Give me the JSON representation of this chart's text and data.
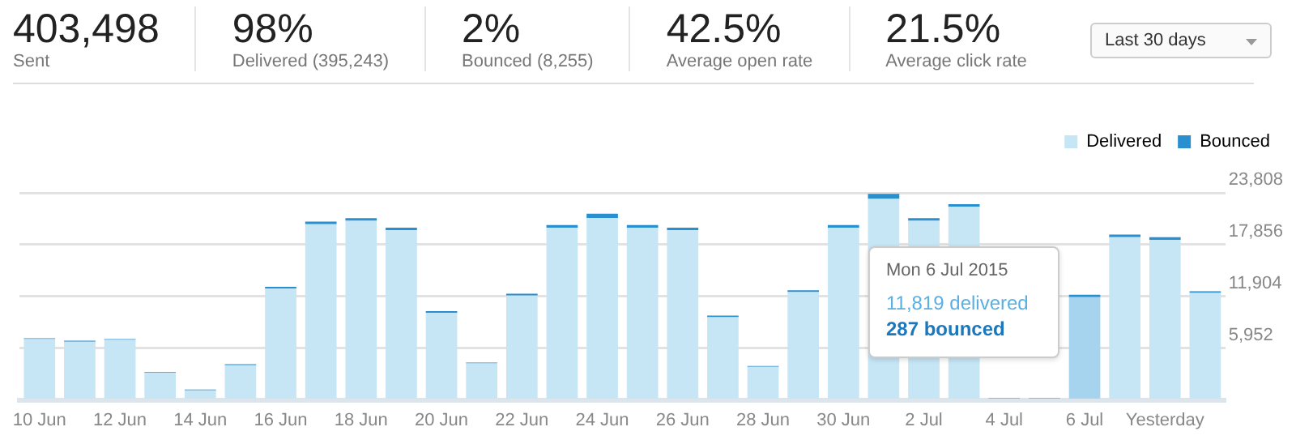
{
  "chart_data": {
    "type": "bar",
    "stacked": true,
    "categories": [
      "10 Jun",
      null,
      "12 Jun",
      null,
      "14 Jun",
      null,
      "16 Jun",
      null,
      "18 Jun",
      null,
      "20 Jun",
      null,
      "22 Jun",
      null,
      "24 Jun",
      null,
      "26 Jun",
      null,
      "28 Jun",
      null,
      "30 Jun",
      null,
      "2 Jul",
      null,
      "4 Jul",
      null,
      "6 Jul",
      null,
      "Yesterday",
      null
    ],
    "series": [
      {
        "name": "Delivered",
        "color": "#c6e5f5",
        "colors": [
          "#c6e5f5",
          "#c6e5f5",
          "#c6e5f5",
          "#c6e5f5",
          "#c6e5f5",
          "#c6e5f5",
          "#c6e5f5",
          "#c6e5f5",
          "#c6e5f5",
          "#c6e5f5",
          "#c6e5f5",
          "#c6e5f5",
          "#c6e5f5",
          "#c6e5f5",
          "#c6e5f5",
          "#c6e5f5",
          "#c6e5f5",
          "#c6e5f5",
          "#c6e5f5",
          "#c6e5f5",
          "#c6e5f5",
          "#c6e5f5",
          "#c6e5f5",
          "#c6e5f5",
          "#c6e5f5",
          "#c6e5f5",
          "#a6d4ee",
          "#c6e5f5",
          "#c6e5f5",
          "#c6e5f5"
        ],
        "values": [
          7000,
          6700,
          6900,
          3100,
          1100,
          4000,
          12800,
          20200,
          20600,
          19500,
          10000,
          4200,
          12000,
          19800,
          20900,
          19800,
          19500,
          9500,
          3800,
          12400,
          19800,
          23100,
          20600,
          22200,
          null,
          null,
          11819,
          18700,
          18400,
          12300
        ]
      },
      {
        "name": "Bounced",
        "color": "#2a8fcf",
        "values": [
          100,
          100,
          100,
          100,
          100,
          100,
          200,
          300,
          300,
          300,
          200,
          100,
          200,
          300,
          500,
          300,
          300,
          200,
          100,
          200,
          300,
          600,
          300,
          300,
          200,
          200,
          287,
          300,
          300,
          200
        ]
      }
    ],
    "ylim": [
      0,
      23808
    ],
    "yticks": [
      {
        "value": 0,
        "label": null
      },
      {
        "value": 5952,
        "label": "5,952"
      },
      {
        "value": 11904,
        "label": "11,904"
      },
      {
        "value": 17856,
        "label": "17,856"
      },
      {
        "value": 23808,
        "label": "23,808"
      }
    ],
    "grid": "y",
    "legend": "top right",
    "annotations": [
      "403,498",
      "Sent",
      "98%",
      "Delivered (395,243)",
      "2%",
      "Bounced (8,255)",
      "42.5%",
      "Average open rate",
      "21.5%",
      "Average click rate",
      "Last 30 days",
      "Mon 6 Jul 2015",
      "11,819 delivered",
      "287 bounced"
    ]
  }
}
